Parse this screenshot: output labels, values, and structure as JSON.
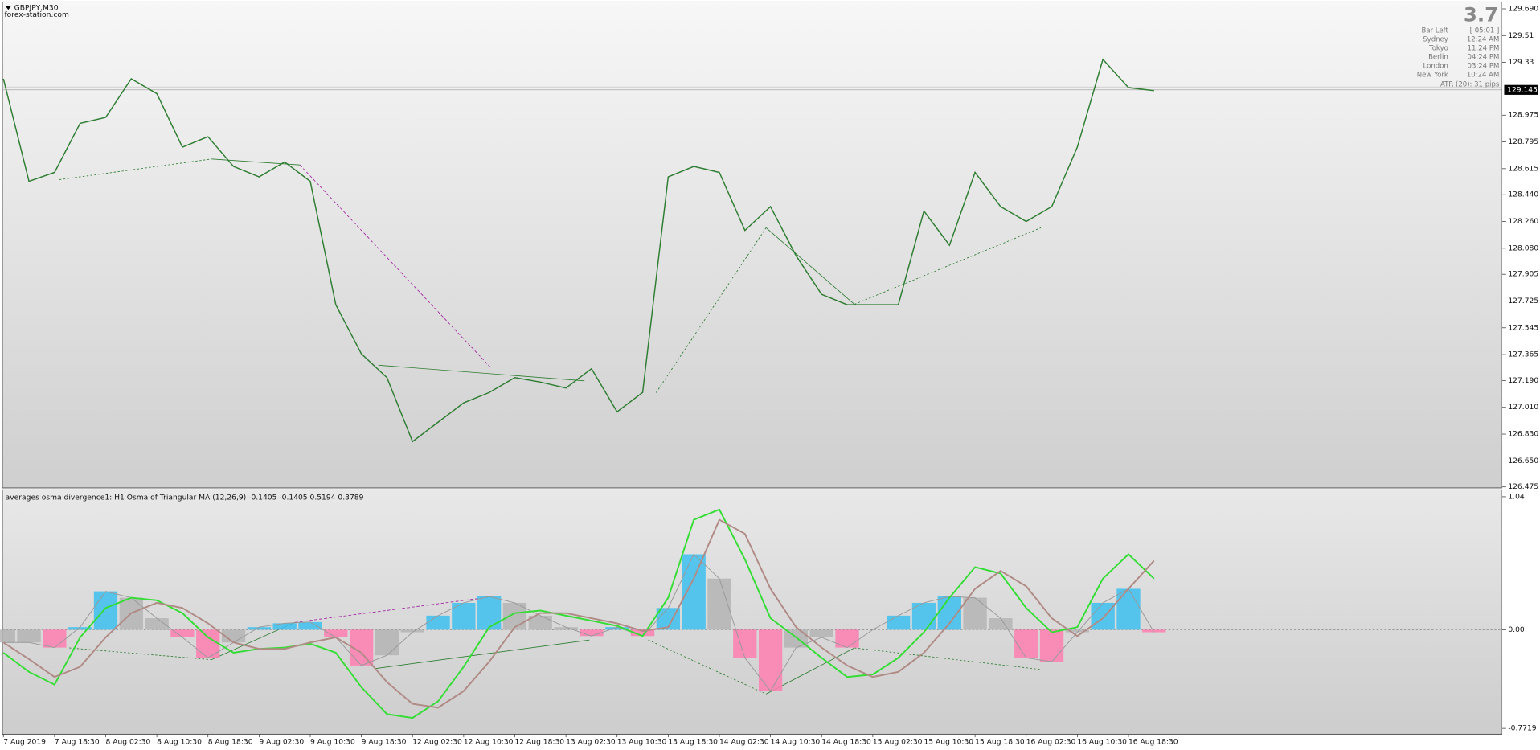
{
  "chart_data": [
    {
      "type": "line",
      "title": "GBPJPY,M30",
      "subtitle": "forex-station.com",
      "color": "#2e7d32",
      "values": [
        129.22,
        128.53,
        128.59,
        128.92,
        128.96,
        129.22,
        129.12,
        128.76,
        128.83,
        128.63,
        128.56,
        128.66,
        128.53,
        127.7,
        127.37,
        127.21,
        126.78,
        126.91,
        127.04,
        127.11,
        127.21,
        127.18,
        127.14,
        127.27,
        126.98,
        127.11,
        128.56,
        128.63,
        128.59,
        128.2,
        128.36,
        128.03,
        127.77,
        127.7,
        127.7,
        127.7,
        128.33,
        128.1,
        128.59,
        128.36,
        128.26,
        128.36,
        128.76,
        129.35,
        129.16,
        129.14
      ],
      "ylim": [
        126.475,
        129.69
      ],
      "yticks": [
        {
          "value": 129.69,
          "label": "129.690"
        },
        129.51,
        129.33,
        128.975,
        128.795,
        128.615,
        {
          "value": 128.44,
          "label": "128.440"
        },
        {
          "value": 128.26,
          "label": "128.260"
        },
        {
          "value": 128.08,
          "label": "128.080"
        },
        127.905,
        127.725,
        127.545,
        127.365,
        {
          "value": 127.19,
          "label": "127.190"
        },
        {
          "value": 127.01,
          "label": "127.010"
        },
        {
          "value": 126.83,
          "label": "126.830"
        },
        {
          "value": 126.65,
          "label": "126.650"
        },
        126.475
      ],
      "last_price": 129.145
    },
    {
      "type": "histogram-lines",
      "title": "averages osma divergence1: H1 Osma of Triangular MA (12,26,9) -0.1405 -0.1405 0.5194 0.3789",
      "categories": [
        "7 Aug 2019",
        null,
        "7 Aug 18:30",
        null,
        "8 Aug 02:30",
        null,
        "8 Aug 10:30",
        null,
        "8 Aug 18:30",
        null,
        "9 Aug 02:30",
        null,
        "9 Aug 10:30",
        null,
        "9 Aug 18:30",
        null,
        "12 Aug 02:30",
        null,
        "12 Aug 10:30",
        null,
        "12 Aug 18:30",
        null,
        "13 Aug 02:30",
        null,
        "13 Aug 10:30",
        null,
        "13 Aug 18:30",
        null,
        "14 Aug 02:30",
        null,
        "14 Aug 10:30",
        null,
        "14 Aug 18:30",
        null,
        "15 Aug 02:30",
        null,
        "15 Aug 10:30",
        null,
        "15 Aug 18:30",
        null,
        "16 Aug 02:30",
        null,
        "16 Aug 10:30",
        null,
        "16 Aug 18:30",
        null
      ],
      "histogram": {
        "rising_color": "#3cc0f0",
        "falling_color": "#ff7fb0",
        "neutral_color": "#b4b4b4",
        "values": [
          -0.1,
          -0.1,
          -0.14,
          0.02,
          0.3,
          0.25,
          0.09,
          -0.06,
          -0.22,
          -0.1,
          0.02,
          0.05,
          0.06,
          -0.06,
          -0.28,
          -0.2,
          -0.02,
          0.11,
          0.21,
          0.26,
          0.21,
          0.11,
          0.02,
          -0.05,
          0.02,
          -0.05,
          0.17,
          0.59,
          0.4,
          -0.22,
          -0.48,
          -0.14,
          -0.06,
          -0.14,
          0.0,
          0.11,
          0.21,
          0.26,
          0.25,
          0.09,
          -0.22,
          -0.25,
          -0.02,
          0.21,
          0.32,
          -0.02
        ]
      },
      "series": [
        {
          "color": "#33dd33",
          "values": [
            -0.18,
            -0.33,
            -0.43,
            -0.06,
            0.17,
            0.25,
            0.23,
            0.13,
            -0.06,
            -0.18,
            -0.15,
            -0.14,
            -0.11,
            -0.18,
            -0.45,
            -0.66,
            -0.69,
            -0.56,
            -0.29,
            0.02,
            0.13,
            0.15,
            0.11,
            0.07,
            0.03,
            -0.05,
            0.25,
            0.86,
            0.94,
            0.55,
            0.09,
            -0.06,
            -0.22,
            -0.37,
            -0.35,
            -0.22,
            -0.02,
            0.25,
            0.49,
            0.44,
            0.17,
            -0.02,
            0.02,
            0.4,
            0.59,
            0.4
          ]
        },
        {
          "color": "#b08a85",
          "values": [
            -0.1,
            -0.23,
            -0.37,
            -0.29,
            -0.06,
            0.13,
            0.21,
            0.17,
            0.05,
            -0.1,
            -0.15,
            -0.15,
            -0.1,
            -0.06,
            -0.18,
            -0.41,
            -0.58,
            -0.61,
            -0.48,
            -0.25,
            0.02,
            0.13,
            0.13,
            0.09,
            0.05,
            -0.01,
            0.02,
            0.4,
            0.86,
            0.75,
            0.32,
            0.02,
            -0.14,
            -0.28,
            -0.37,
            -0.33,
            -0.18,
            0.05,
            0.32,
            0.46,
            0.34,
            0.09,
            -0.05,
            0.09,
            0.32,
            0.54
          ]
        }
      ],
      "ylim": [
        -0.7719,
        1.04
      ],
      "yticks": [
        1.04,
        {
          "value": 0,
          "label": "0.00"
        },
        -0.7719
      ]
    }
  ],
  "info": {
    "countdown": "3.7",
    "rows": [
      [
        "Bar Left",
        "[ 05:01 ]"
      ],
      [
        "Sydney",
        "12:24 AM"
      ],
      [
        "Tokyo",
        "11:24 PM"
      ],
      [
        "Berlin",
        "04:24 PM"
      ],
      [
        "London",
        "03:24 PM"
      ],
      [
        "New York",
        "10:24 AM"
      ]
    ],
    "atr": "ATR (20): 31 pips"
  }
}
